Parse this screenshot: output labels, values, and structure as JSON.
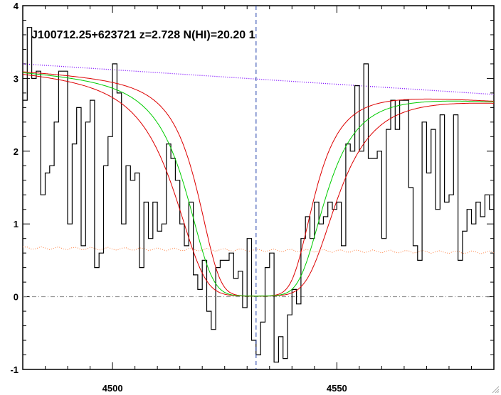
{
  "chart_data": {
    "type": "line",
    "title": "J100712.25+623721 z=2.728 N(HI)=20.20 1",
    "xlabel": "",
    "ylabel": "",
    "xlim": [
      4480,
      4585
    ],
    "ylim": [
      -1,
      4
    ],
    "x_ticks": [
      4500,
      4550
    ],
    "y_ticks": [
      -1,
      0,
      1,
      2,
      3,
      4
    ],
    "grid": false,
    "legend": "none",
    "absorption_center": 4532,
    "colors": {
      "flux": "#000000",
      "fit": "#00cc00",
      "fit_bounds": "#dd0000",
      "continuum": "#7a00ff",
      "error": "#ff7f3f",
      "zero_line": "#888888",
      "center_marker": "#1a3aa8"
    },
    "series": [
      {
        "kind": "flux_spectrum",
        "x": [
          4480.5,
          4481.5,
          4482.5,
          4483.5,
          4484.5,
          4485.5,
          4486.5,
          4487.5,
          4488.5,
          4489.5,
          4490.5,
          4491.5,
          4492.5,
          4493.5,
          4494.5,
          4495.5,
          4496.5,
          4497.5,
          4498.5,
          4499.5,
          4500.5,
          4501.5,
          4502.5,
          4503.5,
          4504.5,
          4505.5,
          4506.5,
          4507.5,
          4508.5,
          4509.5,
          4510.5,
          4511.5,
          4512.5,
          4513.5,
          4514.5,
          4515.5,
          4516.5,
          4517.5,
          4518.5,
          4519.5,
          4520.5,
          4521.5,
          4522.5,
          4523.5,
          4524.5,
          4525.5,
          4526.5,
          4527.5,
          4528.5,
          4529.5,
          4530.5,
          4531.5,
          4532.5,
          4533.5,
          4534.5,
          4535.5,
          4536.5,
          4537.5,
          4538.5,
          4539.5,
          4540.5,
          4541.5,
          4542.5,
          4543.5,
          4544.5,
          4545.5,
          4546.5,
          4547.5,
          4548.5,
          4549.5,
          4550.5,
          4551.5,
          4552.5,
          4553.5,
          4554.5,
          4555.5,
          4556.5,
          4557.5,
          4558.5,
          4559.5,
          4560.5,
          4561.5,
          4562.5,
          4563.5,
          4564.5,
          4565.5,
          4566.5,
          4567.5,
          4568.5,
          4569.5,
          4570.5,
          4571.5,
          4572.5,
          4573.5,
          4574.5,
          4575.5,
          4576.5,
          4577.5,
          4578.5,
          4579.5,
          4580.5,
          4581.5,
          4582.5,
          4583.5,
          4584.5
        ],
        "y": [
          2.7,
          3.7,
          3.0,
          3.1,
          1.4,
          1.7,
          1.8,
          2.4,
          3.1,
          3.1,
          1.0,
          2.1,
          2.6,
          0.7,
          2.4,
          2.7,
          0.4,
          0.6,
          1.8,
          2.2,
          3.2,
          2.8,
          1.0,
          1.8,
          1.6,
          1.7,
          0.4,
          1.3,
          0.8,
          1.3,
          0.9,
          1.0,
          2.1,
          1.9,
          1.6,
          1.0,
          0.7,
          1.3,
          0.3,
          0.1,
          0.5,
          -0.2,
          -0.45,
          0.4,
          0.5,
          0.5,
          0.6,
          0.25,
          0.35,
          -0.15,
          0.8,
          -0.6,
          -0.8,
          -0.35,
          0.4,
          0.6,
          -0.9,
          -0.55,
          -0.85,
          -0.25,
          0.1,
          -0.1,
          0.8,
          1.1,
          0.8,
          1.3,
          1.0,
          1.1,
          1.3,
          1.2,
          1.3,
          0.7,
          2.1,
          2.0,
          2.9,
          2.0,
          3.2,
          1.9,
          1.9,
          2.0,
          0.8,
          2.3,
          2.7,
          2.3,
          2.7,
          2.7,
          1.5,
          0.7,
          0.5,
          2.4,
          1.7,
          2.3,
          1.2,
          2.5,
          1.3,
          1.4,
          2.5,
          0.5,
          0.9,
          1.2,
          1.0,
          1.3,
          1.1,
          1.4,
          1.2
        ]
      }
    ],
    "continuum_line": {
      "x": [
        4480,
        4585
      ],
      "y": [
        3.2,
        2.78
      ]
    },
    "error_level": 0.67
  }
}
